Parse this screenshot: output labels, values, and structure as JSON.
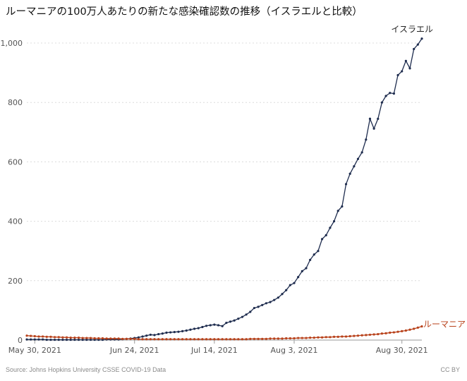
{
  "chart_data": {
    "type": "line",
    "title": "ルーマニアの100万人あたりの新たな感染確認数の推移（イスラエルと比較）",
    "xlabel": "",
    "ylabel": "",
    "ylim": [
      0,
      1050
    ],
    "y_ticks": [
      0,
      200,
      400,
      600,
      800,
      1000
    ],
    "y_tick_labels": [
      "0",
      "200",
      "400",
      "600",
      "800",
      "1,000"
    ],
    "x_range": [
      "2021-05-28",
      "2021-09-04"
    ],
    "x_ticks": [
      {
        "date": "2021-05-30",
        "label": "May 30, 2021"
      },
      {
        "date": "2021-06-24",
        "label": "Jun 24, 2021"
      },
      {
        "date": "2021-07-14",
        "label": "Jul 14, 2021"
      },
      {
        "date": "2021-08-03",
        "label": "Aug 3, 2021"
      },
      {
        "date": "2021-08-30",
        "label": "Aug 30, 2021"
      }
    ],
    "grid": true,
    "start_date": "2021-05-28",
    "series": [
      {
        "name": "イスラエル",
        "color": "#1f2d4f",
        "values": [
          2,
          2,
          2,
          2,
          2,
          1,
          1,
          1,
          1,
          1,
          1,
          1,
          1,
          1,
          1,
          1,
          1,
          1,
          1,
          1,
          2,
          2,
          2,
          2,
          3,
          4,
          5,
          7,
          9,
          12,
          15,
          18,
          17,
          20,
          22,
          25,
          26,
          27,
          28,
          30,
          32,
          35,
          38,
          40,
          44,
          48,
          50,
          52,
          50,
          47,
          58,
          62,
          66,
          72,
          78,
          86,
          95,
          108,
          112,
          118,
          124,
          128,
          135,
          143,
          155,
          168,
          185,
          192,
          212,
          232,
          242,
          270,
          288,
          300,
          340,
          353,
          378,
          400,
          435,
          450,
          525,
          560,
          585,
          610,
          632,
          675,
          745,
          712,
          745,
          800,
          822,
          832,
          830,
          892,
          905,
          940,
          915,
          980,
          995,
          1015
        ]
      },
      {
        "name": "ルーマニア",
        "color": "#b8411a",
        "values": [
          15,
          14,
          13,
          12,
          12,
          11,
          11,
          10,
          10,
          9,
          9,
          8,
          8,
          8,
          7,
          7,
          7,
          6,
          6,
          6,
          5,
          5,
          5,
          5,
          4,
          4,
          4,
          4,
          3,
          3,
          3,
          3,
          3,
          3,
          3,
          3,
          3,
          3,
          3,
          3,
          3,
          3,
          3,
          3,
          3,
          3,
          3,
          3,
          3,
          3,
          3,
          3,
          3,
          3,
          3,
          3,
          4,
          4,
          4,
          4,
          4,
          5,
          5,
          5,
          5,
          6,
          6,
          6,
          7,
          7,
          7,
          8,
          8,
          9,
          9,
          10,
          10,
          11,
          11,
          12,
          12,
          13,
          14,
          15,
          16,
          17,
          18,
          19,
          20,
          22,
          23,
          25,
          26,
          28,
          30,
          32,
          35,
          38,
          42,
          46
        ]
      }
    ]
  },
  "footer": {
    "source": "Source: Johns Hopkins University CSSE COVID-19 Data",
    "license": "CC BY"
  }
}
